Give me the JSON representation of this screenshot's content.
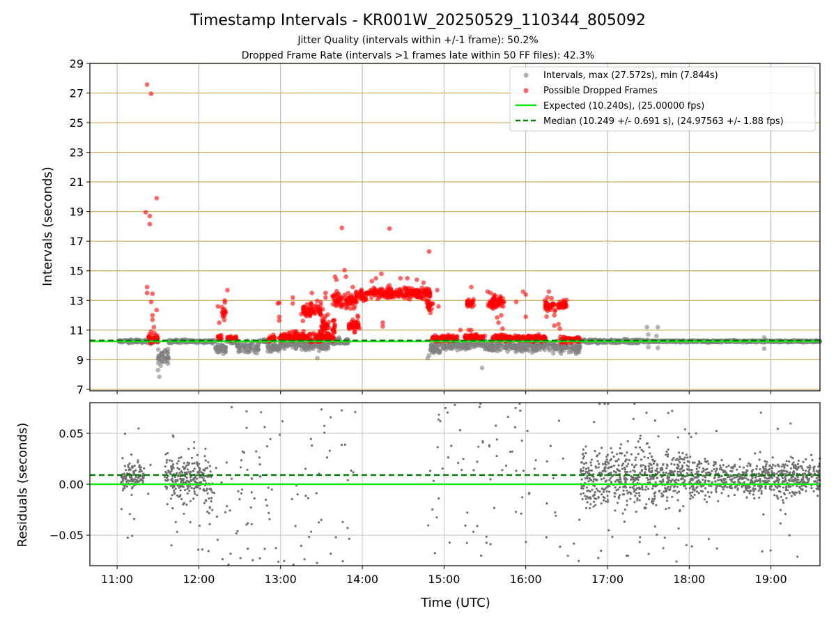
{
  "chart_data": [
    {
      "type": "scatter",
      "title": "Timestamp Intervals - KR001W_20250529_110344_805092",
      "subtitle_1": "Jitter Quality (intervals within +/-1 frame): 50.2%",
      "subtitle_2": "Dropped Frame Rate (intervals >1 frames late within 50 FF files): 42.3%",
      "ylabel": "Intervals (seconds)",
      "ylim": [
        6.9,
        29
      ],
      "y_ticks": [
        7,
        9,
        11,
        13,
        15,
        17,
        19,
        21,
        23,
        25,
        27,
        29
      ],
      "y_tick_labels": [
        "7",
        "9",
        "11",
        "13",
        "15",
        "17",
        "19",
        "21",
        "23",
        "25",
        "27",
        "29"
      ],
      "xlim": [
        "10:40",
        "19:36"
      ],
      "x_ticks": [
        "11:00",
        "12:00",
        "13:00",
        "14:00",
        "15:00",
        "16:00",
        "17:00",
        "18:00",
        "19:00"
      ],
      "grid": "on",
      "legend_position": "top-right",
      "legend": [
        "Intervals, max (27.572s), min (7.844s)",
        "Possible Dropped Frames",
        "Expected (10.240s), (25.00000 fps)",
        "Median (10.249 +/- 0.691 s), (24.97563 +/- 1.88 fps)"
      ],
      "expected_interval": 10.24,
      "median_interval": 10.249,
      "max_interval": 27.572,
      "min_interval": 7.844,
      "colors": {
        "intervals": "#808080",
        "dropped": "#ff0000",
        "expected": "#1ee61e",
        "median": "#008000",
        "hgrid": "#c8aa5a",
        "vgrid": "#b0b0b0"
      },
      "series": [
        {
          "name": "Intervals, max (27.572s), min (7.844s)",
          "dense_clusters": [
            {
              "start": "11:01",
              "end": "11:30",
              "center": 10.24,
              "spread": 0.1
            },
            {
              "start": "11:30",
              "end": "11:38",
              "center": 9.3,
              "spread": 0.5
            },
            {
              "start": "11:38",
              "end": "12:12",
              "center": 10.24,
              "spread": 0.1
            },
            {
              "start": "12:12",
              "end": "12:20",
              "center": 9.8,
              "spread": 0.35
            },
            {
              "start": "12:20",
              "end": "12:28",
              "center": 10.25,
              "spread": 0.12
            },
            {
              "start": "12:28",
              "end": "12:44",
              "center": 9.85,
              "spread": 0.4
            },
            {
              "start": "12:44",
              "end": "12:50",
              "center": 10.25,
              "spread": 0.1
            },
            {
              "start": "12:50",
              "end": "13:00",
              "center": 9.8,
              "spread": 0.35
            },
            {
              "start": "13:00",
              "end": "13:10",
              "center": 10.1,
              "spread": 0.35
            },
            {
              "start": "13:10",
              "end": "13:35",
              "center": 10.0,
              "spread": 0.35
            },
            {
              "start": "13:35",
              "end": "13:50",
              "center": 10.25,
              "spread": 0.2
            },
            {
              "start": "14:50",
              "end": "15:00",
              "center": 9.8,
              "spread": 0.35
            },
            {
              "start": "15:00",
              "end": "15:20",
              "center": 10.0,
              "spread": 0.3
            },
            {
              "start": "15:20",
              "end": "15:30",
              "center": 10.1,
              "spread": 0.3
            },
            {
              "start": "15:30",
              "end": "16:00",
              "center": 9.9,
              "spread": 0.35
            },
            {
              "start": "16:00",
              "end": "16:20",
              "center": 9.95,
              "spread": 0.35
            },
            {
              "start": "16:20",
              "end": "16:40",
              "center": 9.85,
              "spread": 0.35
            },
            {
              "start": "16:40",
              "end": "17:30",
              "center": 10.25,
              "spread": 0.12
            },
            {
              "start": "17:30",
              "end": "19:36",
              "center": 10.24,
              "spread": 0.06
            }
          ],
          "points": [
            {
              "x": "11:31",
              "y": 7.85
            },
            {
              "x": "11:30",
              "y": 8.3
            },
            {
              "x": "11:32",
              "y": 8.6
            },
            {
              "x": "11:33",
              "y": 8.9
            },
            {
              "x": "11:35",
              "y": 9.1
            },
            {
              "x": "13:27",
              "y": 9.1
            },
            {
              "x": "14:48",
              "y": 9.1
            },
            {
              "x": "14:49",
              "y": 9.3
            },
            {
              "x": "15:28",
              "y": 8.45
            },
            {
              "x": "17:29",
              "y": 11.2
            },
            {
              "x": "17:37",
              "y": 11.2
            },
            {
              "x": "17:30",
              "y": 10.7
            },
            {
              "x": "17:36",
              "y": 10.6
            },
            {
              "x": "18:55",
              "y": 10.5
            },
            {
              "x": "18:55",
              "y": 9.75
            },
            {
              "x": "17:30",
              "y": 9.85
            },
            {
              "x": "17:37",
              "y": 9.8
            },
            {
              "x": "16:37",
              "y": 9.4
            },
            {
              "x": "16:39",
              "y": 9.5
            },
            {
              "x": "12:18",
              "y": 9.4
            }
          ]
        },
        {
          "name": "Possible Dropped Frames",
          "dense_clusters": [
            {
              "start": "11:23",
              "end": "11:30",
              "center": 10.4,
              "spread": 0.3
            },
            {
              "start": "12:14",
              "end": "12:17",
              "center": 10.5,
              "spread": 0.15
            },
            {
              "start": "12:17",
              "end": "12:20",
              "center": 12.1,
              "spread": 0.6
            },
            {
              "start": "12:21",
              "end": "12:28",
              "center": 10.45,
              "spread": 0.15
            },
            {
              "start": "12:51",
              "end": "12:56",
              "center": 10.4,
              "spread": 0.2
            },
            {
              "start": "12:59",
              "end": "13:05",
              "center": 10.5,
              "spread": 0.3
            },
            {
              "start": "13:05",
              "end": "13:40",
              "center": 10.55,
              "spread": 0.35
            },
            {
              "start": "13:15",
              "end": "13:30",
              "center": 12.3,
              "spread": 0.6
            },
            {
              "start": "13:30",
              "end": "13:40",
              "center": 11.3,
              "spread": 0.6
            },
            {
              "start": "13:38",
              "end": "13:55",
              "center": 13.0,
              "spread": 0.5
            },
            {
              "start": "13:55",
              "end": "14:03",
              "center": 13.3,
              "spread": 0.4
            },
            {
              "start": "13:50",
              "end": "13:58",
              "center": 11.3,
              "spread": 0.5
            },
            {
              "start": "14:03",
              "end": "14:50",
              "center": 13.5,
              "spread": 0.35
            },
            {
              "start": "14:47",
              "end": "14:52",
              "center": 12.7,
              "spread": 0.4
            },
            {
              "start": "14:50",
              "end": "15:10",
              "center": 10.45,
              "spread": 0.2
            },
            {
              "start": "15:15",
              "end": "15:30",
              "center": 10.5,
              "spread": 0.2
            },
            {
              "start": "15:17",
              "end": "15:22",
              "center": 12.8,
              "spread": 0.35
            },
            {
              "start": "15:32",
              "end": "15:44",
              "center": 12.9,
              "spread": 0.4
            },
            {
              "start": "15:35",
              "end": "16:00",
              "center": 10.45,
              "spread": 0.2
            },
            {
              "start": "16:00",
              "end": "16:15",
              "center": 10.45,
              "spread": 0.25
            },
            {
              "start": "16:14",
              "end": "16:22",
              "center": 12.6,
              "spread": 0.5
            },
            {
              "start": "16:23",
              "end": "16:30",
              "center": 12.7,
              "spread": 0.3
            },
            {
              "start": "16:25",
              "end": "16:40",
              "center": 10.35,
              "spread": 0.2
            }
          ],
          "points": [
            {
              "x": "11:22",
              "y": 27.57
            },
            {
              "x": "11:25",
              "y": 26.95
            },
            {
              "x": "11:29",
              "y": 19.9
            },
            {
              "x": "11:21",
              "y": 18.95
            },
            {
              "x": "11:24",
              "y": 18.7
            },
            {
              "x": "11:24",
              "y": 18.15
            },
            {
              "x": "11:22",
              "y": 13.9
            },
            {
              "x": "11:22",
              "y": 13.5
            },
            {
              "x": "11:26",
              "y": 13.45
            },
            {
              "x": "11:25",
              "y": 12.9
            },
            {
              "x": "11:29",
              "y": 12.35
            },
            {
              "x": "11:26",
              "y": 12.0
            },
            {
              "x": "11:26",
              "y": 11.7
            },
            {
              "x": "11:27",
              "y": 11.2
            },
            {
              "x": "11:25",
              "y": 10.9
            },
            {
              "x": "12:14",
              "y": 12.6
            },
            {
              "x": "12:15",
              "y": 11.5
            },
            {
              "x": "12:19",
              "y": 13.0
            },
            {
              "x": "12:21",
              "y": 13.7
            },
            {
              "x": "12:17",
              "y": 12.55
            },
            {
              "x": "12:59",
              "y": 12.85
            },
            {
              "x": "12:58",
              "y": 12.8
            },
            {
              "x": "12:59",
              "y": 11.9
            },
            {
              "x": "12:59",
              "y": 11.65
            },
            {
              "x": "13:09",
              "y": 13.2
            },
            {
              "x": "13:09",
              "y": 12.8
            },
            {
              "x": "13:23",
              "y": 13.5
            },
            {
              "x": "13:31",
              "y": 12.4
            },
            {
              "x": "13:33",
              "y": 13.5
            },
            {
              "x": "13:33",
              "y": 13.2
            },
            {
              "x": "13:40",
              "y": 14.6
            },
            {
              "x": "13:41",
              "y": 14.4
            },
            {
              "x": "13:45",
              "y": 17.9
            },
            {
              "x": "13:47",
              "y": 15.05
            },
            {
              "x": "13:48",
              "y": 14.6
            },
            {
              "x": "13:53",
              "y": 13.9
            },
            {
              "x": "13:56",
              "y": 11.3
            },
            {
              "x": "13:57",
              "y": 11.2
            },
            {
              "x": "14:07",
              "y": 14.3
            },
            {
              "x": "14:10",
              "y": 14.5
            },
            {
              "x": "14:14",
              "y": 14.8
            },
            {
              "x": "14:15",
              "y": 11.5
            },
            {
              "x": "14:15",
              "y": 11.25
            },
            {
              "x": "14:20",
              "y": 17.85
            },
            {
              "x": "14:28",
              "y": 14.5
            },
            {
              "x": "14:33",
              "y": 14.5
            },
            {
              "x": "14:40",
              "y": 14.4
            },
            {
              "x": "14:45",
              "y": 14.2
            },
            {
              "x": "14:49",
              "y": 16.3
            },
            {
              "x": "14:55",
              "y": 13.7
            },
            {
              "x": "14:56",
              "y": 12.6
            },
            {
              "x": "15:20",
              "y": 13.9
            },
            {
              "x": "15:18",
              "y": 11.0
            },
            {
              "x": "15:20",
              "y": 11.0
            },
            {
              "x": "15:12",
              "y": 11.0
            },
            {
              "x": "15:32",
              "y": 13.6
            },
            {
              "x": "15:34",
              "y": 13.5
            },
            {
              "x": "15:38",
              "y": 13.3
            },
            {
              "x": "15:39",
              "y": 11.85
            },
            {
              "x": "15:40",
              "y": 11.5
            },
            {
              "x": "15:42",
              "y": 12.0
            },
            {
              "x": "15:43",
              "y": 11.1
            },
            {
              "x": "15:58",
              "y": 13.6
            },
            {
              "x": "16:00",
              "y": 13.4
            },
            {
              "x": "15:53",
              "y": 12.9
            },
            {
              "x": "16:00",
              "y": 11.9
            },
            {
              "x": "16:17",
              "y": 13.6
            },
            {
              "x": "16:14",
              "y": 13.0
            },
            {
              "x": "16:17",
              "y": 12.6
            },
            {
              "x": "16:21",
              "y": 12.0
            },
            {
              "x": "16:24",
              "y": 11.4
            },
            {
              "x": "16:21",
              "y": 11.3
            },
            {
              "x": "16:25",
              "y": 11.1
            },
            {
              "x": "16:25",
              "y": 12.9
            },
            {
              "x": "16:29",
              "y": 12.8
            },
            {
              "x": "16:30",
              "y": 12.6
            }
          ]
        }
      ]
    },
    {
      "type": "scatter",
      "ylabel": "Residuals (seconds)",
      "xlabel": "Time (UTC)",
      "ylim": [
        -0.08,
        0.08
      ],
      "y_ticks": [
        -0.05,
        0,
        0.05
      ],
      "y_tick_labels": [
        "−0.05",
        "0.00",
        "0.05"
      ],
      "xlim": [
        "10:40",
        "19:36"
      ],
      "x_ticks": [
        "11:00",
        "12:00",
        "13:00",
        "14:00",
        "15:00",
        "16:00",
        "17:00",
        "18:00",
        "19:00"
      ],
      "x_tick_labels": [
        "11:00",
        "12:00",
        "13:00",
        "14:00",
        "15:00",
        "16:00",
        "17:00",
        "18:00",
        "19:00"
      ],
      "grid": "on",
      "expected_residual": 0,
      "median_residual": 0.009,
      "colors": {
        "points": "#707070",
        "expected": "#1ee61e",
        "median": "#008000",
        "grid": "#c4c4c4"
      },
      "series": [
        {
          "name": "Residuals",
          "dense_clusters": [
            {
              "start": "11:03",
              "end": "11:20",
              "center": 0.008,
              "spread": 0.012
            },
            {
              "start": "11:35",
              "end": "12:04",
              "center": 0.005,
              "spread": 0.02
            },
            {
              "start": "12:04",
              "end": "12:10",
              "center": 0.0,
              "spread": 0.03
            },
            {
              "start": "16:40",
              "end": "17:00",
              "center": 0.005,
              "spread": 0.03
            },
            {
              "start": "17:00",
              "end": "18:00",
              "center": 0.008,
              "spread": 0.028
            },
            {
              "start": "18:00",
              "end": "19:36",
              "center": 0.006,
              "spread": 0.018
            }
          ],
          "sparse_ranges": [
            {
              "start": "11:00",
              "end": "11:25",
              "count": 12,
              "spread": 0.06
            },
            {
              "start": "11:35",
              "end": "12:15",
              "count": 28,
              "spread": 0.06
            },
            {
              "start": "12:15",
              "end": "13:00",
              "count": 55,
              "spread": 0.07
            },
            {
              "start": "13:00",
              "end": "13:55",
              "count": 40,
              "spread": 0.07
            },
            {
              "start": "14:48",
              "end": "15:30",
              "count": 35,
              "spread": 0.07
            },
            {
              "start": "15:30",
              "end": "16:40",
              "count": 45,
              "spread": 0.07
            },
            {
              "start": "16:40",
              "end": "18:00",
              "count": 60,
              "spread": 0.07
            },
            {
              "start": "18:00",
              "end": "19:36",
              "count": 30,
              "spread": 0.06
            }
          ]
        }
      ]
    }
  ]
}
